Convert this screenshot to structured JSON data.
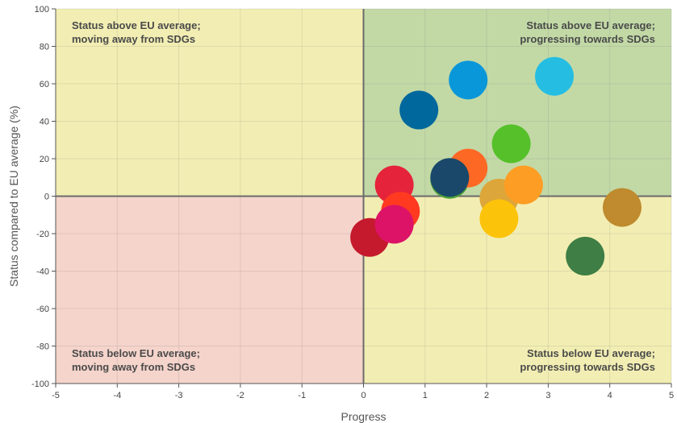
{
  "chart_data": {
    "type": "scatter",
    "title": "",
    "xlabel": "Progress",
    "ylabel": "Status compared to EU average (%)",
    "xlim": [
      -5,
      5
    ],
    "ylim": [
      -100,
      100
    ],
    "xticks": [
      -5,
      -4,
      -3,
      -2,
      -1,
      0,
      1,
      2,
      3,
      4,
      5
    ],
    "yticks": [
      -100,
      -80,
      -60,
      -40,
      -20,
      0,
      20,
      40,
      60,
      80,
      100
    ],
    "grid": true,
    "quadrants": [
      {
        "id": "top-left",
        "lines": [
          "Status above EU average;",
          "moving away from SDGs"
        ],
        "color": "#f2eeb3",
        "align": "left"
      },
      {
        "id": "top-right",
        "lines": [
          "Status above EU average;",
          "progressing towards SDGs"
        ],
        "color": "#c2d9a6",
        "align": "right"
      },
      {
        "id": "bottom-left",
        "lines": [
          "Status below EU average;",
          "moving away from SDGs"
        ],
        "color": "#f5d4cb",
        "align": "left"
      },
      {
        "id": "bottom-right",
        "lines": [
          "Status below EU average;",
          "progressing towards SDGs"
        ],
        "color": "#f2eeb3",
        "align": "right"
      }
    ],
    "points": [
      {
        "x": 0.1,
        "y": -22,
        "color": "#c5192d"
      },
      {
        "x": 0.5,
        "y": 6,
        "color": "#e5243b"
      },
      {
        "x": 0.6,
        "y": -8,
        "color": "#ff3a21"
      },
      {
        "x": 0.5,
        "y": -15,
        "color": "#dd1367"
      },
      {
        "x": 0.9,
        "y": 46,
        "color": "#00689d"
      },
      {
        "x": 1.4,
        "y": 9,
        "color": "#4c9f38"
      },
      {
        "x": 1.7,
        "y": 15,
        "color": "#fd6925"
      },
      {
        "x": 1.4,
        "y": 10,
        "color": "#19486a"
      },
      {
        "x": 1.7,
        "y": 62,
        "color": "#0a97d9"
      },
      {
        "x": 2.2,
        "y": -1,
        "color": "#dda63a"
      },
      {
        "x": 2.2,
        "y": -12,
        "color": "#fcc30b"
      },
      {
        "x": 2.4,
        "y": 28,
        "color": "#56c02b"
      },
      {
        "x": 2.6,
        "y": 6,
        "color": "#fd9d24"
      },
      {
        "x": 3.1,
        "y": 64,
        "color": "#26bde2"
      },
      {
        "x": 3.6,
        "y": -32,
        "color": "#3f7e44"
      },
      {
        "x": 4.2,
        "y": -6,
        "color": "#bf8b2e"
      }
    ]
  }
}
